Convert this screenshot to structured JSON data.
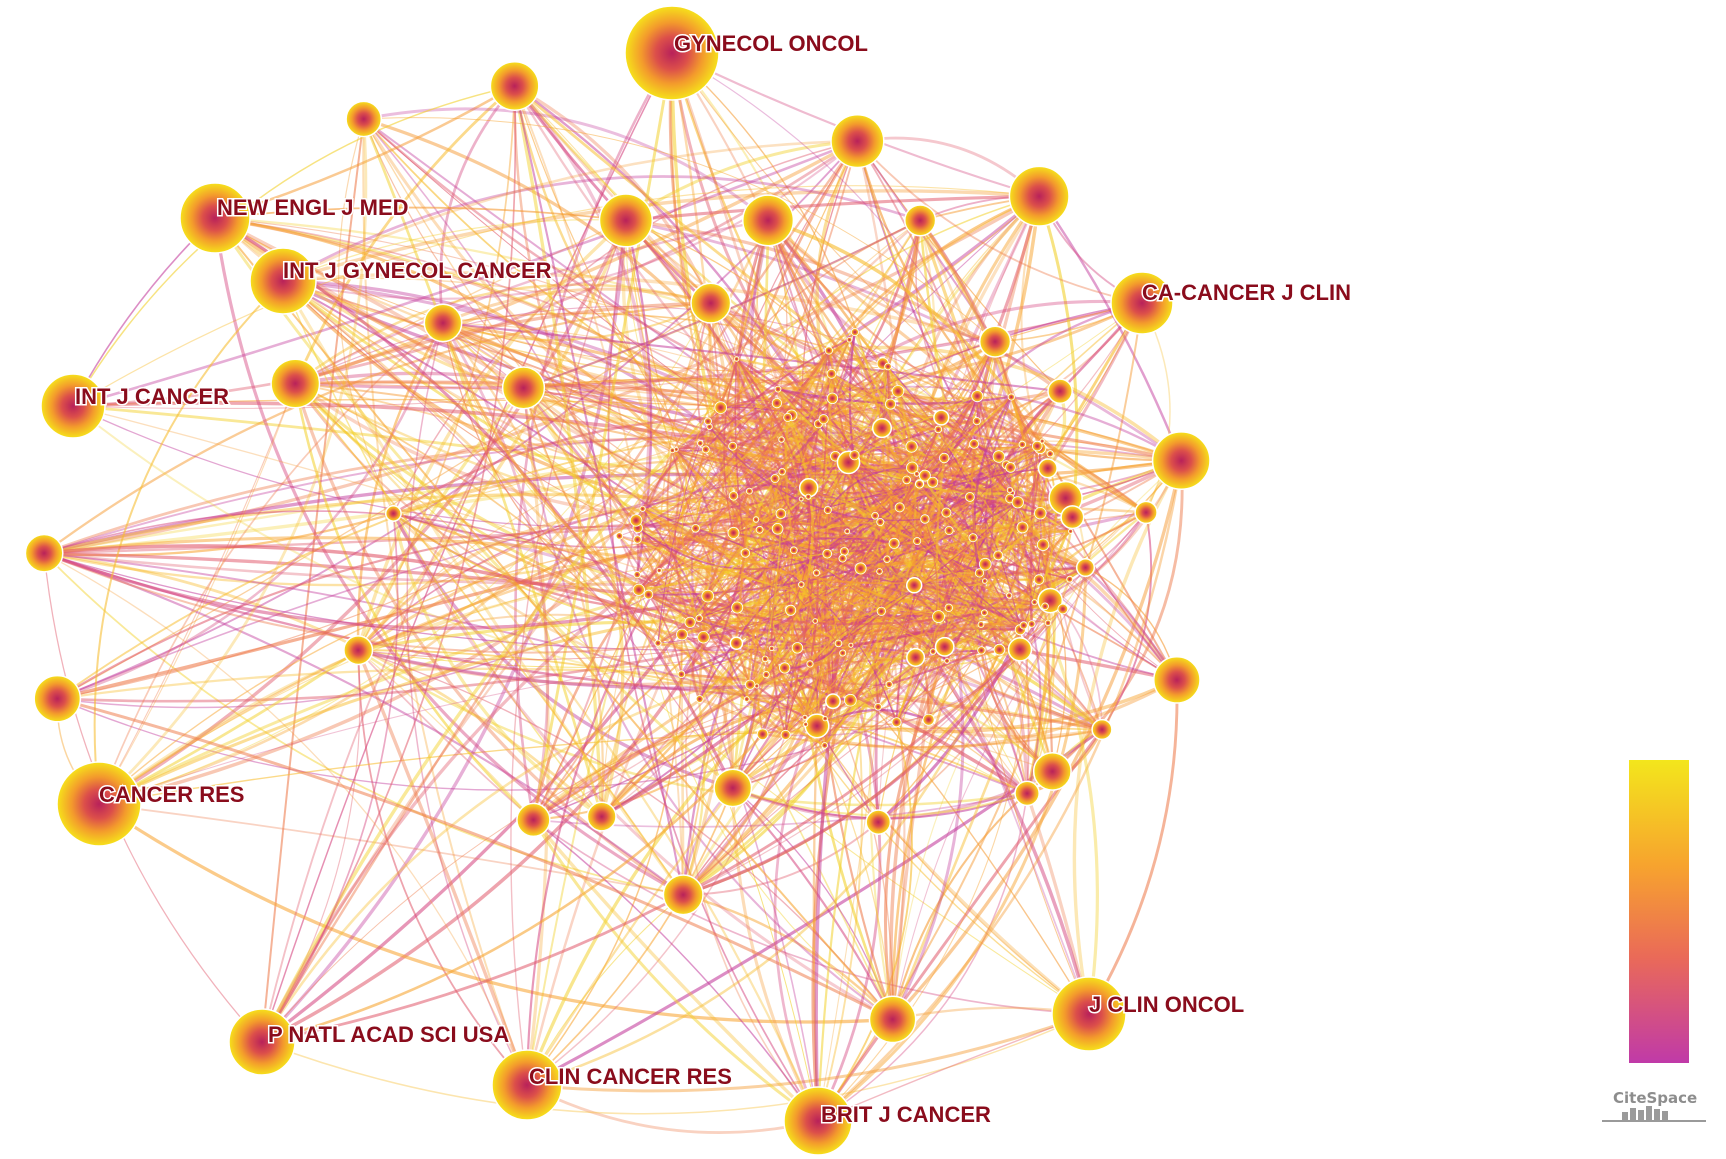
{
  "nodes": [
    {
      "label": "GYNECOL ONCOL"
    },
    {
      "label": "NEW ENGL J MED"
    },
    {
      "label": "INT J GYNECOL CANCER"
    },
    {
      "label": "CA-CANCER J CLIN"
    },
    {
      "label": "INT J CANCER"
    },
    {
      "label": "CANCER RES"
    },
    {
      "label": "J CLIN ONCOL"
    },
    {
      "label": "P NATL ACAD SCI USA"
    },
    {
      "label": "CLIN CANCER RES"
    },
    {
      "label": "BRIT J CANCER"
    }
  ],
  "legend": {
    "logo": "CiteSpace"
  }
}
